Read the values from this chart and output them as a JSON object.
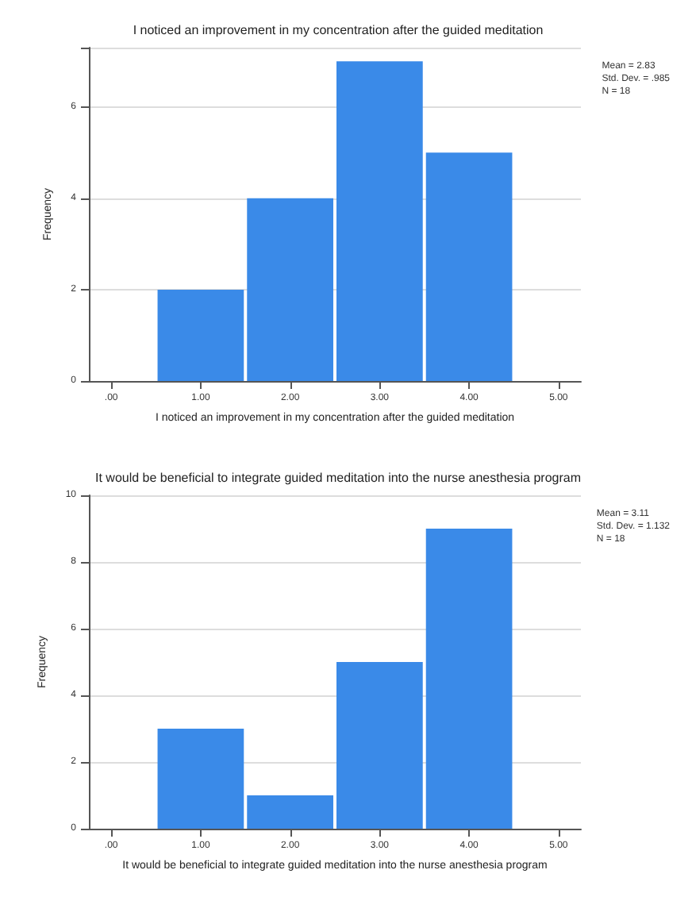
{
  "chart_data": [
    {
      "type": "histogram",
      "title": "I noticed an improvement in my concentration after the guided meditation",
      "xlabel": "I noticed an improvement in my concentration after the guided meditation",
      "ylabel": "Frequency",
      "bins": [
        0.5,
        1.5,
        2.5,
        3.5,
        4.5
      ],
      "values": [
        2,
        4,
        7,
        5
      ],
      "color": "#3a8ae8",
      "xlim": [
        -0.25,
        5.25
      ],
      "xticks": [
        {
          "value": 0,
          "label": ".00"
        },
        {
          "value": 1,
          "label": "1.00"
        },
        {
          "value": 2,
          "label": "2.00"
        },
        {
          "value": 3,
          "label": "3.00"
        },
        {
          "value": 4,
          "label": "4.00"
        },
        {
          "value": 5,
          "label": "5.00"
        }
      ],
      "ylim": [
        0,
        7.3
      ],
      "yticks": [
        0,
        2,
        4,
        6
      ],
      "grid": "y",
      "annotations": [
        "Mean = 2.83\nStd. Dev. = .985\nN = 18"
      ]
    },
    {
      "type": "histogram",
      "title": "It would be beneficial to integrate guided meditation into the nurse anesthesia program",
      "xlabel": "It would be beneficial to integrate guided meditation into the nurse anesthesia program",
      "ylabel": "Frequency",
      "bins": [
        0.5,
        1.5,
        2.5,
        3.5,
        4.5
      ],
      "values": [
        3,
        1,
        5,
        9
      ],
      "color": "#3a8ae8",
      "xlim": [
        -0.25,
        5.25
      ],
      "xticks": [
        {
          "value": 0,
          "label": ".00"
        },
        {
          "value": 1,
          "label": "1.00"
        },
        {
          "value": 2,
          "label": "2.00"
        },
        {
          "value": 3,
          "label": "3.00"
        },
        {
          "value": 4,
          "label": "4.00"
        },
        {
          "value": 5,
          "label": "5.00"
        }
      ],
      "ylim": [
        0,
        10
      ],
      "yticks": [
        0,
        2,
        4,
        6,
        8,
        10
      ],
      "grid": "y",
      "annotations": [
        "Mean = 3.11\nStd. Dev. = 1.132\nN = 18"
      ]
    }
  ]
}
